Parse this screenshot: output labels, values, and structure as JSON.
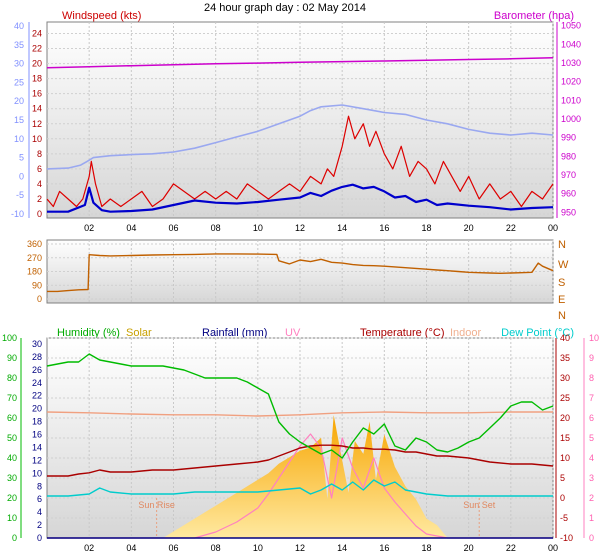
{
  "page_title": "24 hour graph day : 02 May 2014",
  "time_ticks": [
    "02",
    "04",
    "06",
    "08",
    "10",
    "12",
    "14",
    "16",
    "18",
    "20",
    "22",
    "00"
  ],
  "colors": {
    "windspeed": "#dd0000",
    "windspeed_avg": "#0000cc",
    "gust_band": "#9aa8f0",
    "barometer": "#cc00cc",
    "winddir": "#c06000",
    "humidity": "#00bb00",
    "solar": "#f2b000",
    "rainfall": "#000080",
    "uv": "#ff80c0",
    "temperature": "#aa0000",
    "indoor": "#f0a080",
    "dewpoint": "#00cccc",
    "frame": "#808080",
    "left_axis_blue": "#8090ff"
  },
  "chart_data": [
    {
      "type": "line",
      "panel": "wind-barometer",
      "legend": [
        {
          "label": "Windspeed (kts)",
          "color": "#cc0000"
        },
        {
          "label": "Barometer (hpa)",
          "color": "#cc00cc"
        }
      ],
      "left_axis_ticks": [
        "40",
        "35",
        "30",
        "25",
        "20",
        "15",
        "10",
        "5",
        "0",
        "-5",
        "-10"
      ],
      "inner_axis_ticks": [
        "24",
        "22",
        "20",
        "18",
        "16",
        "14",
        "12",
        "10",
        "8",
        "6",
        "4",
        "2",
        "0"
      ],
      "right_axis_ticks": [
        "1050",
        "1040",
        "1030",
        "1020",
        "1010",
        "1000",
        "990",
        "980",
        "970",
        "960",
        "950"
      ],
      "inner_axis_range": [
        0,
        25
      ],
      "right_axis_range": [
        947,
        1052
      ],
      "x_range_hours": [
        0,
        24
      ],
      "series": [
        {
          "key": "barometer",
          "axis": "right",
          "x": [
            0,
            2,
            4,
            6,
            8,
            10,
            12,
            14,
            16,
            18,
            20,
            22,
            24
          ],
          "y": [
            1027.5,
            1028.0,
            1028.6,
            1029.1,
            1029.6,
            1030.0,
            1030.4,
            1030.8,
            1031.1,
            1031.5,
            1031.9,
            1032.3,
            1032.8
          ]
        },
        {
          "key": "gust_band",
          "axis": "left",
          "x": [
            0,
            1,
            1.6,
            1.9,
            2.2,
            3,
            4,
            5,
            6,
            7,
            8,
            9,
            10,
            11,
            12,
            12.5,
            13,
            14,
            15,
            16,
            17,
            18,
            19,
            20,
            21,
            22,
            23,
            24
          ],
          "y": [
            2,
            2.2,
            3,
            4,
            5,
            5.5,
            5.8,
            6,
            6.5,
            7.5,
            9,
            10.5,
            12,
            14,
            16,
            17.5,
            18.5,
            19,
            18,
            17,
            16.5,
            15,
            14,
            12.5,
            11.5,
            11,
            11.5,
            11
          ]
        },
        {
          "key": "windspeed",
          "axis": "inner",
          "x": [
            0,
            0.3,
            0.6,
            1,
            1.4,
            1.7,
            2,
            2.1,
            2.3,
            2.6,
            3,
            3.5,
            4,
            4.5,
            5,
            5.5,
            6,
            6.5,
            7,
            7.5,
            8,
            8.5,
            9,
            9.5,
            10,
            10.5,
            11,
            11.5,
            12,
            12.5,
            13,
            13.3,
            13.6,
            14,
            14.3,
            14.6,
            15,
            15.3,
            15.6,
            16,
            16.4,
            16.8,
            17.2,
            17.6,
            18,
            18.4,
            18.8,
            19.2,
            19.6,
            20,
            20.5,
            21,
            21.5,
            22,
            22.5,
            23,
            23.5,
            24
          ],
          "y": [
            2,
            1,
            3,
            2,
            1,
            2,
            5,
            7,
            4,
            1,
            2,
            1,
            2,
            3,
            1,
            2,
            4,
            3,
            2,
            3,
            2,
            3,
            2,
            4,
            3,
            2,
            3,
            4,
            3,
            5,
            4,
            6,
            5,
            9,
            13,
            10,
            12,
            9,
            11,
            8,
            6,
            9,
            5,
            7,
            6,
            4,
            7,
            5,
            3,
            5,
            2,
            4,
            2,
            3,
            1,
            3,
            2,
            4
          ]
        },
        {
          "key": "windspeed_avg",
          "axis": "inner",
          "x": [
            0,
            1,
            1.8,
            2,
            2.2,
            2.6,
            3,
            4,
            5,
            6,
            7,
            8,
            9,
            10,
            11,
            12,
            12.5,
            13,
            13.5,
            14,
            14.5,
            15,
            15.5,
            16,
            16.5,
            17,
            17.5,
            18,
            18.5,
            19,
            20,
            21,
            22,
            23,
            24
          ],
          "y": [
            0.3,
            0.3,
            1.2,
            3.5,
            1.5,
            0.5,
            0.3,
            0.4,
            0.6,
            1.2,
            1.8,
            1.5,
            1.4,
            1.6,
            1.9,
            2.2,
            2.8,
            2.4,
            3.1,
            3.6,
            3.9,
            3.4,
            3.6,
            3.0,
            2.2,
            2.4,
            1.6,
            1.9,
            1.2,
            1.4,
            1.1,
            0.9,
            0.6,
            0.8,
            0.9
          ]
        }
      ]
    },
    {
      "type": "line",
      "panel": "wind-direction",
      "left_axis_ticks": [
        "360",
        "270",
        "180",
        "90",
        "0"
      ],
      "right_axis_labels": [
        "N",
        "W",
        "S",
        "E",
        "N"
      ],
      "y_range": [
        0,
        360
      ],
      "series": [
        {
          "key": "winddir",
          "x": [
            0,
            0.5,
            1,
            1.5,
            1.95,
            2.0,
            2.5,
            3,
            4,
            5,
            6,
            7,
            8,
            9,
            10,
            10.9,
            11.0,
            11.5,
            12,
            12.5,
            13,
            13.5,
            14,
            14.5,
            15,
            15.5,
            16,
            16.5,
            17,
            17.5,
            18,
            18.5,
            19,
            19.5,
            20,
            20.5,
            21,
            21.5,
            22,
            22.5,
            23,
            23.3,
            23.5,
            24
          ],
          "y": [
            50,
            50,
            55,
            60,
            62,
            290,
            285,
            282,
            285,
            288,
            290,
            292,
            295,
            295,
            294,
            292,
            250,
            230,
            255,
            245,
            260,
            240,
            235,
            225,
            220,
            218,
            215,
            210,
            205,
            200,
            195,
            190,
            185,
            180,
            175,
            172,
            170,
            168,
            170,
            172,
            175,
            235,
            215,
            185
          ]
        }
      ]
    },
    {
      "type": "area",
      "panel": "environment",
      "legend": [
        {
          "label": "Humidity (%)",
          "color": "#00bb00"
        },
        {
          "label": "Solar",
          "color": "#d0a000"
        },
        {
          "label": "Rainfall (mm)",
          "color": "#000080"
        },
        {
          "label": "UV",
          "color": "#ff80c0"
        },
        {
          "label": "Temperature (°C)",
          "color": "#aa0000"
        },
        {
          "label": "Indoor",
          "color": "#f0b090"
        },
        {
          "label": "Dew Point (°C)",
          "color": "#00cccc"
        }
      ],
      "left_axis_ticks": [
        "100",
        "90",
        "80",
        "70",
        "60",
        "50",
        "40",
        "30",
        "20",
        "10",
        "0"
      ],
      "inner_axis_ticks": [
        "30",
        "28",
        "26",
        "24",
        "22",
        "20",
        "18",
        "16",
        "14",
        "12",
        "10",
        "8",
        "6",
        "4",
        "2",
        "0"
      ],
      "right_axis_ticks": [
        "40",
        "35",
        "30",
        "25",
        "20",
        "15",
        "10",
        "5",
        "0",
        "-5",
        "-10"
      ],
      "far_right_axis_ticks": [
        "10",
        "9",
        "8",
        "7",
        "6",
        "5",
        "4",
        "3",
        "2",
        "1",
        "0"
      ],
      "annotations": [
        "Sun Rise",
        "Sun Set"
      ],
      "series": [
        {
          "key": "humidity",
          "axis": "left",
          "x": [
            0,
            0.5,
            1,
            1.5,
            2,
            2.5,
            3,
            3.5,
            4,
            4.5,
            5,
            5.5,
            6,
            6.5,
            7,
            7.5,
            8,
            8.5,
            9,
            9.5,
            10,
            10.5,
            11,
            11.5,
            12,
            12.5,
            13,
            13.5,
            14,
            14.5,
            15,
            15.5,
            16,
            16.5,
            17,
            17.5,
            18,
            18.5,
            19,
            19.5,
            20,
            20.5,
            21,
            21.5,
            22,
            22.5,
            23,
            23.5,
            24
          ],
          "y": [
            86,
            87,
            88,
            88,
            92,
            89,
            88,
            87,
            86,
            86,
            86,
            86,
            85,
            84,
            82,
            80,
            80,
            80,
            80,
            78,
            75,
            72,
            58,
            52,
            48,
            45,
            42,
            44,
            40,
            48,
            55,
            52,
            57,
            46,
            44,
            50,
            48,
            44,
            43,
            45,
            48,
            50,
            55,
            60,
            66,
            68,
            68,
            64,
            66
          ]
        },
        {
          "key": "solar",
          "axis": "inner",
          "x": [
            0,
            5.5,
            6,
            6.5,
            7,
            7.5,
            8,
            8.5,
            9,
            9.5,
            10,
            10.5,
            11,
            11.5,
            12,
            12.5,
            13,
            13.3,
            13.6,
            14,
            14.3,
            14.6,
            15,
            15.3,
            15.6,
            16,
            16.5,
            17,
            17.5,
            18,
            18.5,
            19,
            24
          ],
          "y": [
            0,
            0,
            1,
            2,
            3,
            4,
            5,
            6,
            7,
            8,
            9,
            10,
            11.5,
            12.5,
            13.5,
            14,
            15.5,
            6,
            19,
            12,
            7,
            15,
            13,
            18,
            9,
            16,
            11,
            8,
            6,
            3,
            2,
            0,
            0
          ]
        },
        {
          "key": "uv",
          "axis": "far_right",
          "x": [
            0,
            7,
            8,
            9,
            10,
            10.5,
            11,
            11.5,
            12,
            12.5,
            13,
            13.5,
            14,
            14.5,
            15,
            15.5,
            16,
            16.5,
            17,
            17.5,
            18,
            18.5,
            19,
            24
          ],
          "y": [
            0,
            0,
            0.3,
            0.8,
            1.5,
            2.2,
            3,
            3.8,
            4.6,
            5.2,
            4.5,
            2,
            5,
            3.5,
            2.5,
            4,
            2.5,
            1.8,
            1.2,
            0.6,
            0.2,
            0.1,
            0,
            0
          ]
        },
        {
          "key": "indoor",
          "axis": "right",
          "x": [
            0,
            2,
            4,
            6,
            8,
            10,
            12,
            14,
            16,
            18,
            20,
            22,
            24
          ],
          "y": [
            21.5,
            21.3,
            21.0,
            20.8,
            20.8,
            20.5,
            20.8,
            21.3,
            21.5,
            21.3,
            21.3,
            21.5,
            21.5
          ]
        },
        {
          "key": "temperature",
          "axis": "right",
          "x": [
            0,
            1,
            1.5,
            2,
            2.5,
            3,
            4,
            5,
            6,
            7,
            8,
            9,
            10,
            10.5,
            11,
            11.5,
            12,
            12.5,
            13,
            13.5,
            14,
            14.5,
            15,
            15.5,
            16,
            16.5,
            17,
            17.5,
            18,
            18.5,
            19,
            20,
            21,
            22,
            23,
            24
          ],
          "y": [
            5.5,
            5.5,
            6,
            6.3,
            7,
            6.5,
            6.5,
            7,
            7,
            7.5,
            8,
            8.5,
            9,
            9.5,
            10.5,
            11.5,
            12.5,
            13,
            13.2,
            13.2,
            13,
            12.5,
            12.5,
            12.2,
            12.2,
            12,
            11.5,
            11.5,
            11,
            10.5,
            10.5,
            10,
            9,
            8.5,
            8.5,
            8
          ]
        },
        {
          "key": "dewpoint",
          "axis": "right",
          "x": [
            0,
            1,
            2,
            2.5,
            3,
            4,
            5,
            6,
            7,
            8,
            9,
            10,
            11,
            12,
            12.5,
            13,
            13.5,
            14,
            14.5,
            15,
            15.5,
            16,
            16.5,
            17,
            17.5,
            18,
            19,
            20,
            21,
            22,
            23,
            24
          ],
          "y": [
            0.5,
            0.5,
            1,
            2.5,
            1.5,
            1,
            1,
            1,
            1.5,
            1.5,
            1.5,
            1.5,
            2,
            2.5,
            1,
            2,
            3.5,
            2,
            4,
            2,
            4.5,
            3,
            4,
            2,
            1.5,
            1,
            0.5,
            0.5,
            0.5,
            0.5,
            0.5,
            0.5
          ]
        },
        {
          "key": "rainfall",
          "axis": "inner",
          "x": [
            0,
            24
          ],
          "y": [
            0,
            0
          ]
        }
      ]
    }
  ]
}
